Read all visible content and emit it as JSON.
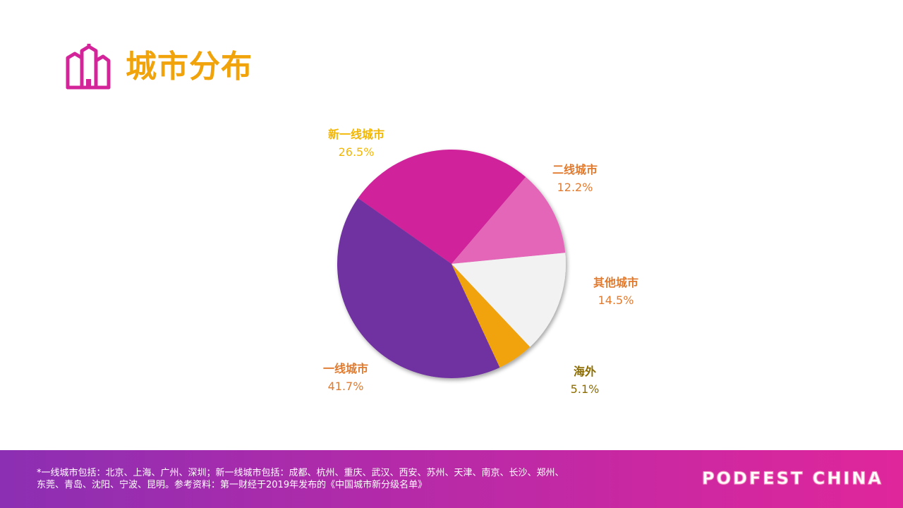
{
  "title": "城市分布",
  "colors": {
    "title": "#F0A30A",
    "icon": "#D4249A"
  },
  "chart_data": {
    "type": "pie",
    "title": "",
    "start_angle_deg": 65,
    "slices": [
      {
        "label": "一线城市",
        "value": 41.7,
        "value_label": "41.7%",
        "color": "#7030A0",
        "label_color": "#E07B30"
      },
      {
        "label": "新一线城市",
        "value": 26.5,
        "value_label": "26.5%",
        "color": "#D0249A",
        "label_color": "#F2B705"
      },
      {
        "label": "二线城市",
        "value": 12.2,
        "value_label": "12.2%",
        "color": "#E466B8",
        "label_color": "#E07B30"
      },
      {
        "label": "其他城市",
        "value": 14.5,
        "value_label": "14.5%",
        "color": "#F2F2F2",
        "label_color": "#E07B30"
      },
      {
        "label": "海外",
        "value": 5.1,
        "value_label": "5.1%",
        "color": "#F0A30A",
        "label_color": "#8C6C00"
      }
    ]
  },
  "footer": {
    "note_line1": "*一线城市包括：北京、上海、广州、深圳；新一线城市包括：成都、杭州、重庆、武汉、西安、苏州、天津、南京、长沙、郑州、",
    "note_line2": "东莞、青岛、沈阳、宁波、昆明。参考资料：第一财经于2019年发布的《中国城市新分级名单》",
    "brand": "PODFEST CHINA"
  }
}
